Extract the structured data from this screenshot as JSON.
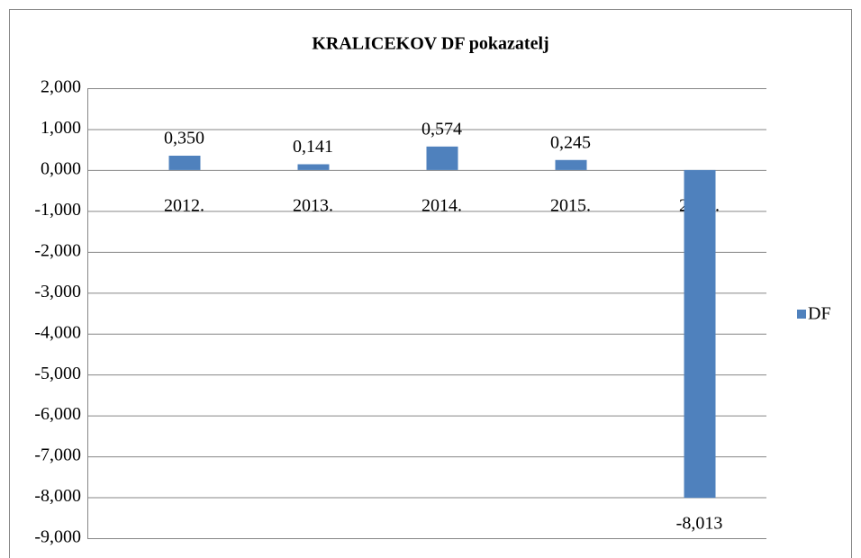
{
  "chart_data": {
    "type": "bar",
    "title": "KRALICEKOV DF pokazatelj",
    "categories": [
      "2012.",
      "2013.",
      "2014.",
      "2015.",
      "2016."
    ],
    "series": [
      {
        "name": "DF",
        "color": "#4f81bd",
        "values": [
          0.35,
          0.141,
          0.574,
          0.245,
          -8.013
        ],
        "value_labels": [
          "0,350",
          "0,141",
          "0,574",
          "0,245",
          "-8,013"
        ]
      }
    ],
    "ylim": [
      -9,
      2
    ],
    "yticks": [
      {
        "value": 2,
        "label": "2,000"
      },
      {
        "value": 1,
        "label": "1,000"
      },
      {
        "value": 0,
        "label": "0,000"
      },
      {
        "value": -1,
        "label": "-1,000"
      },
      {
        "value": -2,
        "label": "-2,000"
      },
      {
        "value": -3,
        "label": "-3,000"
      },
      {
        "value": -4,
        "label": "-4,000"
      },
      {
        "value": -5,
        "label": "-5,000"
      },
      {
        "value": -6,
        "label": "-6,000"
      },
      {
        "value": -7,
        "label": "-7,000"
      },
      {
        "value": -8,
        "label": "-8,000"
      },
      {
        "value": -9,
        "label": "-9,000"
      }
    ],
    "grid": true,
    "legend": "right"
  }
}
